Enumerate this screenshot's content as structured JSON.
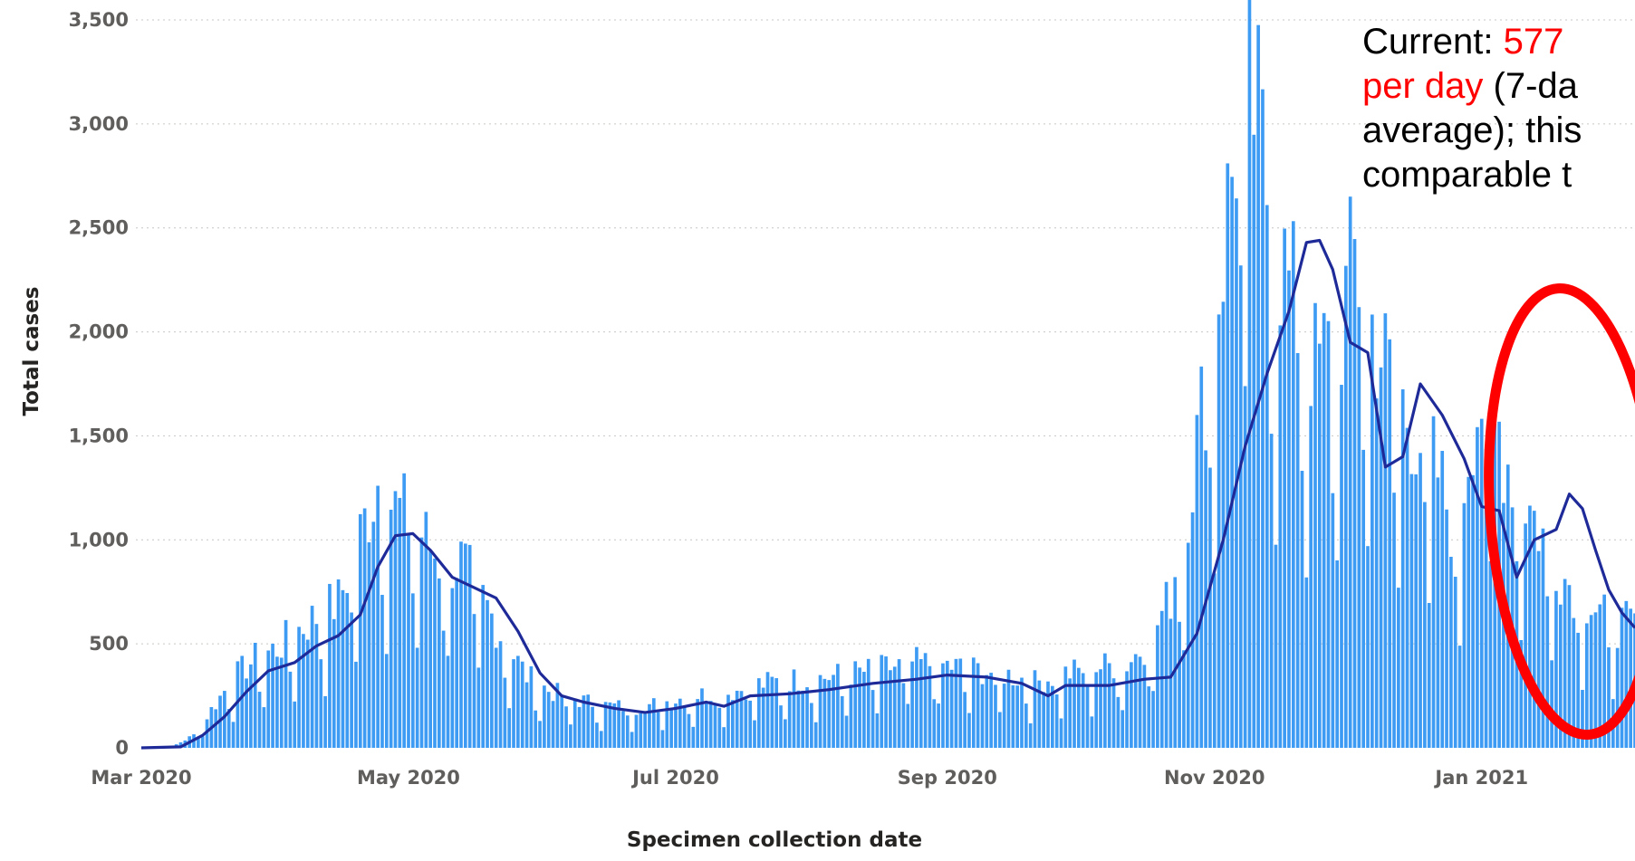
{
  "chart_data": {
    "type": "bar",
    "xlabel": "Specimen collection date",
    "ylabel": "Total cases",
    "ylim": [
      0,
      3500
    ],
    "y_ticks": [
      0,
      500,
      1000,
      1500,
      2000,
      2500,
      3000,
      3500
    ],
    "y_tick_labels": [
      "0",
      "500",
      "1,000",
      "1,500",
      "2,000",
      "2,500",
      "3,000",
      "3,500"
    ],
    "x_range": [
      "2020-03-01",
      "2021-02-05"
    ],
    "x_ticks": [
      {
        "date": "2020-03-01",
        "label": "Mar 2020"
      },
      {
        "date": "2020-05-01",
        "label": "May 2020"
      },
      {
        "date": "2020-07-01",
        "label": "Jul 2020"
      },
      {
        "date": "2020-09-01",
        "label": "Sep 2020"
      },
      {
        "date": "2020-11-01",
        "label": "Nov 2020"
      },
      {
        "date": "2021-01-01",
        "label": "Jan 2021"
      }
    ],
    "grid": "horizontal dotted",
    "colors": {
      "bars": "#3e9bf4",
      "average_line": "#1f2a99",
      "highlight": "#ff0000"
    },
    "series": [
      {
        "type": "bar",
        "daily": [
          [
            "2020-03-01",
            0
          ],
          [
            "2020-03-08",
            5
          ],
          [
            "2020-03-13",
            60
          ],
          [
            "2020-03-17",
            180
          ],
          [
            "2020-03-22",
            330
          ],
          [
            "2020-03-27",
            420
          ],
          [
            "2020-04-01",
            470
          ],
          [
            "2020-04-06",
            560
          ],
          [
            "2020-04-10",
            620
          ],
          [
            "2020-04-15",
            690
          ],
          [
            "2020-04-20",
            1000
          ],
          [
            "2020-04-24",
            1260
          ],
          [
            "2020-04-28",
            1130
          ],
          [
            "2020-05-03",
            1050
          ],
          [
            "2020-05-08",
            880
          ],
          [
            "2020-05-13",
            880
          ],
          [
            "2020-05-18",
            700
          ],
          [
            "2020-05-23",
            500
          ],
          [
            "2020-05-28",
            340
          ],
          [
            "2020-06-02",
            270
          ],
          [
            "2020-06-08",
            230
          ],
          [
            "2020-06-15",
            200
          ],
          [
            "2020-06-22",
            190
          ],
          [
            "2020-06-29",
            220
          ],
          [
            "2020-07-06",
            250
          ],
          [
            "2020-07-13",
            260
          ],
          [
            "2020-07-20",
            300
          ],
          [
            "2020-07-27",
            320
          ],
          [
            "2020-08-03",
            330
          ],
          [
            "2020-08-10",
            350
          ],
          [
            "2020-08-17",
            370
          ],
          [
            "2020-08-24",
            400
          ],
          [
            "2020-08-31",
            390
          ],
          [
            "2020-09-07",
            370
          ],
          [
            "2020-09-14",
            350
          ],
          [
            "2020-09-21",
            310
          ],
          [
            "2020-09-28",
            350
          ],
          [
            "2020-10-05",
            380
          ],
          [
            "2020-10-12",
            400
          ],
          [
            "2020-10-17",
            500
          ],
          [
            "2020-10-22",
            720
          ],
          [
            "2020-10-27",
            1300
          ],
          [
            "2020-11-01",
            2000
          ],
          [
            "2020-11-05",
            2700
          ],
          [
            "2020-11-08",
            3290
          ],
          [
            "2020-11-11",
            2900
          ],
          [
            "2020-11-15",
            2400
          ],
          [
            "2020-11-19",
            2100
          ],
          [
            "2020-11-24",
            1800
          ],
          [
            "2020-11-29",
            1900
          ],
          [
            "2020-12-03",
            2300
          ],
          [
            "2020-12-07",
            1990
          ],
          [
            "2020-12-12",
            1700
          ],
          [
            "2020-12-17",
            1500
          ],
          [
            "2020-12-22",
            1300
          ],
          [
            "2020-12-26",
            1000
          ],
          [
            "2020-12-30",
            1560
          ],
          [
            "2021-01-03",
            1740
          ],
          [
            "2021-01-06",
            1400
          ],
          [
            "2021-01-10",
            1220
          ],
          [
            "2021-01-15",
            1000
          ],
          [
            "2021-01-20",
            800
          ],
          [
            "2021-01-25",
            700
          ],
          [
            "2021-01-30",
            590
          ],
          [
            "2021-02-04",
            577
          ]
        ]
      },
      {
        "type": "line",
        "average": [
          [
            "2020-03-01",
            0
          ],
          [
            "2020-03-10",
            5
          ],
          [
            "2020-03-15",
            60
          ],
          [
            "2020-03-20",
            150
          ],
          [
            "2020-03-25",
            270
          ],
          [
            "2020-03-30",
            370
          ],
          [
            "2020-04-05",
            410
          ],
          [
            "2020-04-10",
            490
          ],
          [
            "2020-04-15",
            540
          ],
          [
            "2020-04-20",
            640
          ],
          [
            "2020-04-24",
            870
          ],
          [
            "2020-04-28",
            1020
          ],
          [
            "2020-05-02",
            1030
          ],
          [
            "2020-05-06",
            950
          ],
          [
            "2020-05-11",
            820
          ],
          [
            "2020-05-16",
            770
          ],
          [
            "2020-05-21",
            720
          ],
          [
            "2020-05-26",
            560
          ],
          [
            "2020-05-31",
            360
          ],
          [
            "2020-06-05",
            250
          ],
          [
            "2020-06-10",
            220
          ],
          [
            "2020-06-17",
            190
          ],
          [
            "2020-06-24",
            170
          ],
          [
            "2020-07-01",
            190
          ],
          [
            "2020-07-08",
            220
          ],
          [
            "2020-07-12",
            200
          ],
          [
            "2020-07-18",
            250
          ],
          [
            "2020-07-27",
            260
          ],
          [
            "2020-08-05",
            280
          ],
          [
            "2020-08-15",
            310
          ],
          [
            "2020-08-25",
            330
          ],
          [
            "2020-09-01",
            350
          ],
          [
            "2020-09-10",
            340
          ],
          [
            "2020-09-18",
            310
          ],
          [
            "2020-09-24",
            250
          ],
          [
            "2020-09-28",
            300
          ],
          [
            "2020-10-08",
            300
          ],
          [
            "2020-10-16",
            330
          ],
          [
            "2020-10-22",
            340
          ],
          [
            "2020-10-28",
            550
          ],
          [
            "2020-11-03",
            1000
          ],
          [
            "2020-11-08",
            1450
          ],
          [
            "2020-11-13",
            1800
          ],
          [
            "2020-11-18",
            2100
          ],
          [
            "2020-11-22",
            2430
          ],
          [
            "2020-11-25",
            2440
          ],
          [
            "2020-11-28",
            2300
          ],
          [
            "2020-12-02",
            1950
          ],
          [
            "2020-12-06",
            1900
          ],
          [
            "2020-12-10",
            1350
          ],
          [
            "2020-12-14",
            1400
          ],
          [
            "2020-12-18",
            1750
          ],
          [
            "2020-12-23",
            1600
          ],
          [
            "2020-12-28",
            1390
          ],
          [
            "2021-01-01",
            1160
          ],
          [
            "2021-01-05",
            1140
          ],
          [
            "2021-01-09",
            820
          ],
          [
            "2021-01-13",
            1000
          ],
          [
            "2021-01-18",
            1050
          ],
          [
            "2021-01-21",
            1220
          ],
          [
            "2021-01-24",
            1150
          ],
          [
            "2021-01-27",
            950
          ],
          [
            "2021-01-30",
            760
          ],
          [
            "2021-02-02",
            650
          ],
          [
            "2021-02-05",
            577
          ]
        ]
      }
    ]
  },
  "annotation": {
    "prefix": "Current: ",
    "value": "577",
    "line2_red": "per day",
    "line2_rest": " (7-da",
    "line3": "average); this",
    "line4": "comparable t"
  }
}
